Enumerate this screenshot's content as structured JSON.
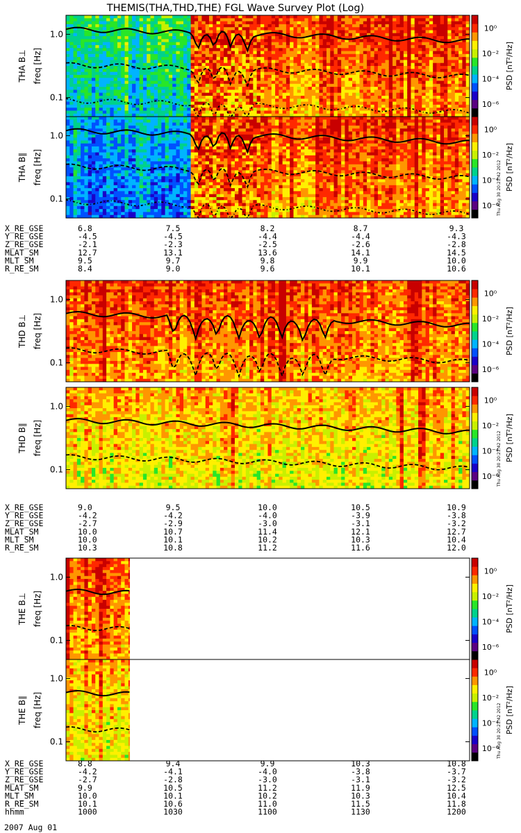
{
  "title": "THEMIS(THA,THD,THE) FGL Wave Survey Plot (Log)",
  "date_label": "2007 Aug 01",
  "stamp": "Thu Aug 30 20:21:42 2012",
  "colorbar": {
    "label": "PSD [nT²/Hz]",
    "ticks": [
      "10⁰",
      "10⁻²",
      "10⁻⁴",
      "10⁻⁶"
    ],
    "tick_exponents": [
      0,
      -2,
      -4,
      -6
    ],
    "palette": [
      "#000000",
      "#5a0082",
      "#1a00c8",
      "#0050ff",
      "#00b4ff",
      "#00d28c",
      "#28e628",
      "#c8f000",
      "#fff000",
      "#ff9600",
      "#ff2800",
      "#c80000"
    ]
  },
  "chart_data": [
    {
      "type": "heatmap",
      "name": "THA B⊥",
      "ylabel_probe": "THA B⊥",
      "ylabel": "freq [Hz]",
      "yticks": [
        "1.0",
        "0.1"
      ],
      "ytick_values": [
        1.0,
        0.1
      ],
      "yscale": "log",
      "ylim": [
        0.05,
        2.0
      ],
      "x_range_hhmm": [
        "1000",
        "1200"
      ],
      "data_end_hhmm": "1200",
      "transition_hhmm": "1037",
      "storm_end_hhmm": "1057",
      "regime_before": "mixed",
      "regime_after": "hot",
      "seed": 3,
      "gyro_levels": [
        1.2,
        0.33,
        0.09
      ]
    },
    {
      "type": "heatmap",
      "name": "THA B∥",
      "ylabel_probe": "THA B∥",
      "ylabel": "freq [Hz]",
      "yticks": [
        "1.0",
        "0.1"
      ],
      "ytick_values": [
        1.0,
        0.1
      ],
      "yscale": "log",
      "ylim": [
        0.05,
        2.0
      ],
      "x_range_hhmm": [
        "1000",
        "1200"
      ],
      "data_end_hhmm": "1200",
      "transition_hhmm": "1037",
      "storm_end_hhmm": "1057",
      "regime_before": "cool",
      "regime_after": "hot",
      "seed": 7,
      "gyro_levels": [
        1.2,
        0.33,
        0.09
      ]
    },
    {
      "type": "heatmap",
      "name": "THD B⊥",
      "ylabel_probe": "THD B⊥",
      "ylabel": "freq [Hz]",
      "yticks": [
        "1.0",
        "0.1"
      ],
      "ytick_values": [
        1.0,
        0.1
      ],
      "yscale": "log",
      "ylim": [
        0.05,
        2.0
      ],
      "x_range_hhmm": [
        "1000",
        "1200"
      ],
      "data_end_hhmm": "1200",
      "transition_hhmm": "1000",
      "storm_end_hhmm": "1000",
      "regime_before": "hot",
      "regime_after": "hot",
      "seed": 11,
      "gyro_levels": [
        0.6,
        0.16
      ]
    },
    {
      "type": "heatmap",
      "name": "THD B∥",
      "ylabel_probe": "THD B∥",
      "ylabel": "freq [Hz]",
      "yticks": [
        "1.0",
        "0.1"
      ],
      "ytick_values": [
        1.0,
        0.1
      ],
      "yscale": "log",
      "ylim": [
        0.05,
        2.0
      ],
      "x_range_hhmm": [
        "1000",
        "1200"
      ],
      "data_end_hhmm": "1200",
      "transition_hhmm": "1000",
      "storm_end_hhmm": "1000",
      "regime_before": "warm",
      "regime_after": "warm",
      "seed": 13,
      "gyro_levels": [
        0.6,
        0.16
      ]
    },
    {
      "type": "heatmap",
      "name": "THE B⊥",
      "ylabel_probe": "THE B⊥",
      "ylabel": "freq [Hz]",
      "yticks": [
        "1.0",
        "0.1"
      ],
      "ytick_values": [
        1.0,
        0.1
      ],
      "yscale": "log",
      "ylim": [
        0.05,
        2.0
      ],
      "x_range_hhmm": [
        "1000",
        "1200"
      ],
      "data_end_hhmm": "1019",
      "transition_hhmm": "1000",
      "storm_end_hhmm": "1000",
      "regime_before": "hot",
      "regime_after": "hot",
      "seed": 17,
      "gyro_levels": [
        0.6,
        0.16
      ]
    },
    {
      "type": "heatmap",
      "name": "THE B∥",
      "ylabel_probe": "THE B∥",
      "ylabel": "freq [Hz]",
      "yticks": [
        "1.0",
        "0.1"
      ],
      "ytick_values": [
        1.0,
        0.1
      ],
      "yscale": "log",
      "ylim": [
        0.05,
        2.0
      ],
      "x_range_hhmm": [
        "1000",
        "1200"
      ],
      "data_end_hhmm": "1019",
      "transition_hhmm": "1000",
      "storm_end_hhmm": "1000",
      "regime_before": "warm",
      "regime_after": "warm",
      "seed": 19,
      "gyro_levels": [
        0.6,
        0.16
      ]
    }
  ],
  "ephemeris": [
    {
      "labels": [
        "X_RE_GSE",
        "Y_RE_GSE",
        "Z_RE_GSE",
        "MLAT_SM",
        "MLT_SM",
        "R_RE_SM"
      ],
      "columns": [
        [
          "6.8",
          "-4.5",
          "-2.1",
          "12.7",
          "9.5",
          "8.4"
        ],
        [
          "7.5",
          "-4.5",
          "-2.3",
          "13.1",
          "9.7",
          "9.0"
        ],
        [
          "8.2",
          "-4.4",
          "-2.5",
          "13.6",
          "9.8",
          "9.6"
        ],
        [
          "8.7",
          "-4.4",
          "-2.6",
          "14.1",
          "9.9",
          "10.1"
        ],
        [
          "9.3",
          "-4.3",
          "-2.8",
          "14.5",
          "10.0",
          "10.6"
        ]
      ]
    },
    {
      "labels": [
        "X_RE_GSE",
        "Y_RE_GSE",
        "Z_RE_GSE",
        "MLAT_SM",
        "MLT_SM",
        "R_RE_SM"
      ],
      "columns": [
        [
          "9.0",
          "-4.2",
          "-2.7",
          "10.0",
          "10.0",
          "10.3"
        ],
        [
          "9.5",
          "-4.2",
          "-2.9",
          "10.7",
          "10.1",
          "10.8"
        ],
        [
          "10.0",
          "-4.0",
          "-3.0",
          "11.4",
          "10.2",
          "11.2"
        ],
        [
          "10.5",
          "-3.9",
          "-3.1",
          "12.1",
          "10.3",
          "11.6"
        ],
        [
          "10.9",
          "-3.8",
          "-3.2",
          "12.7",
          "10.4",
          "12.0"
        ]
      ]
    },
    {
      "labels": [
        "X_RE_GSE",
        "Y_RE_GSE",
        "Z_RE_GSE",
        "MLAT_SM",
        "MLT_SM",
        "R_RE_SM",
        "hhmm"
      ],
      "columns": [
        [
          "8.8",
          "-4.2",
          "-2.7",
          "9.9",
          "10.0",
          "10.1",
          "1000"
        ],
        [
          "9.4",
          "-4.1",
          "-2.8",
          "10.5",
          "10.1",
          "10.6",
          "1030"
        ],
        [
          "9.9",
          "-4.0",
          "-3.0",
          "11.2",
          "10.2",
          "11.0",
          "1100"
        ],
        [
          "10.3",
          "-3.8",
          "-3.1",
          "11.9",
          "10.3",
          "11.5",
          "1130"
        ],
        [
          "10.8",
          "-3.7",
          "-3.2",
          "12.5",
          "10.4",
          "11.8",
          "1200"
        ]
      ]
    }
  ]
}
